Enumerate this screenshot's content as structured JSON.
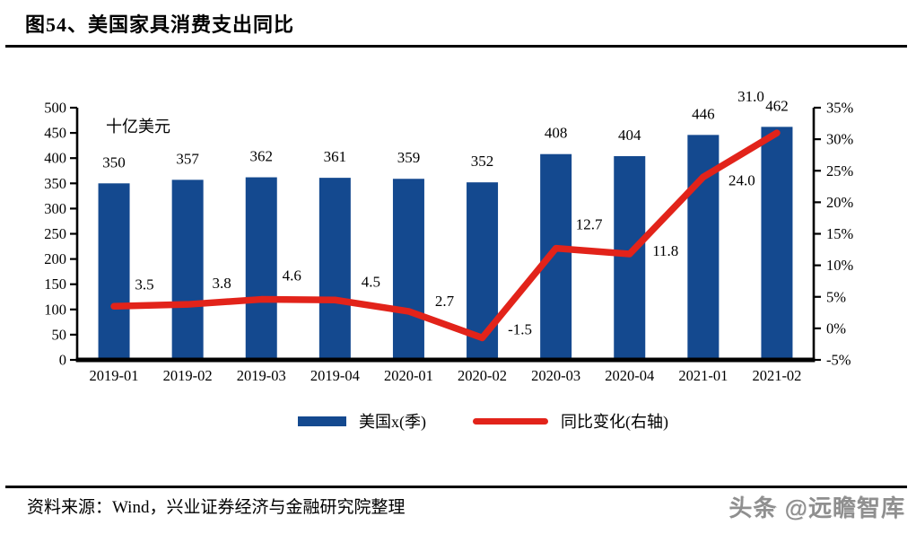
{
  "header": {
    "title": "图54、美国家具消费支出同比"
  },
  "legend": {
    "bar_label": "美国x(季)",
    "line_label": "同比变化(右轴)"
  },
  "footer": {
    "source": "资料来源：Wind，兴业证券经济与金融研究院整理",
    "watermark": "头条 @远瞻智库"
  },
  "colors": {
    "bar": "#14498f",
    "line": "#e2231a",
    "axis": "#000000",
    "watermark": "#8f8f8f"
  },
  "chart_data": {
    "type": "bar",
    "title": "美国家具消费支出同比",
    "unit_label": "十亿美元",
    "categories": [
      "2019-01",
      "2019-02",
      "2019-03",
      "2019-04",
      "2020-01",
      "2020-02",
      "2020-03",
      "2020-04",
      "2021-01",
      "2021-02"
    ],
    "series": [
      {
        "name": "美国x(季)",
        "type": "bar",
        "axis": "left",
        "values": [
          350,
          357,
          362,
          361,
          359,
          352,
          408,
          404,
          446,
          462
        ],
        "labels": [
          "350",
          "357",
          "362",
          "361",
          "359",
          "352",
          "408",
          "404",
          "446",
          "462"
        ]
      },
      {
        "name": "同比变化(右轴)",
        "type": "line",
        "axis": "right",
        "values": [
          3.5,
          3.8,
          4.6,
          4.5,
          2.7,
          -1.5,
          12.7,
          11.8,
          24.0,
          31.0
        ],
        "labels": [
          "3.5",
          "3.8",
          "4.6",
          "4.5",
          "2.7",
          "-1.5",
          "12.7",
          "11.8",
          "24.0",
          "31.0"
        ]
      }
    ],
    "left_axis": {
      "min": 0,
      "max": 500,
      "step": 50,
      "tick_labels": [
        "0",
        "50",
        "100",
        "150",
        "200",
        "250",
        "300",
        "350",
        "400",
        "450",
        "500"
      ]
    },
    "right_axis": {
      "min": -5,
      "max": 35,
      "step": 5,
      "tick_labels": [
        "-5%",
        "0%",
        "5%",
        "10%",
        "15%",
        "20%",
        "25%",
        "30%",
        "35%"
      ]
    },
    "grid": false,
    "legend_position": "bottom"
  }
}
